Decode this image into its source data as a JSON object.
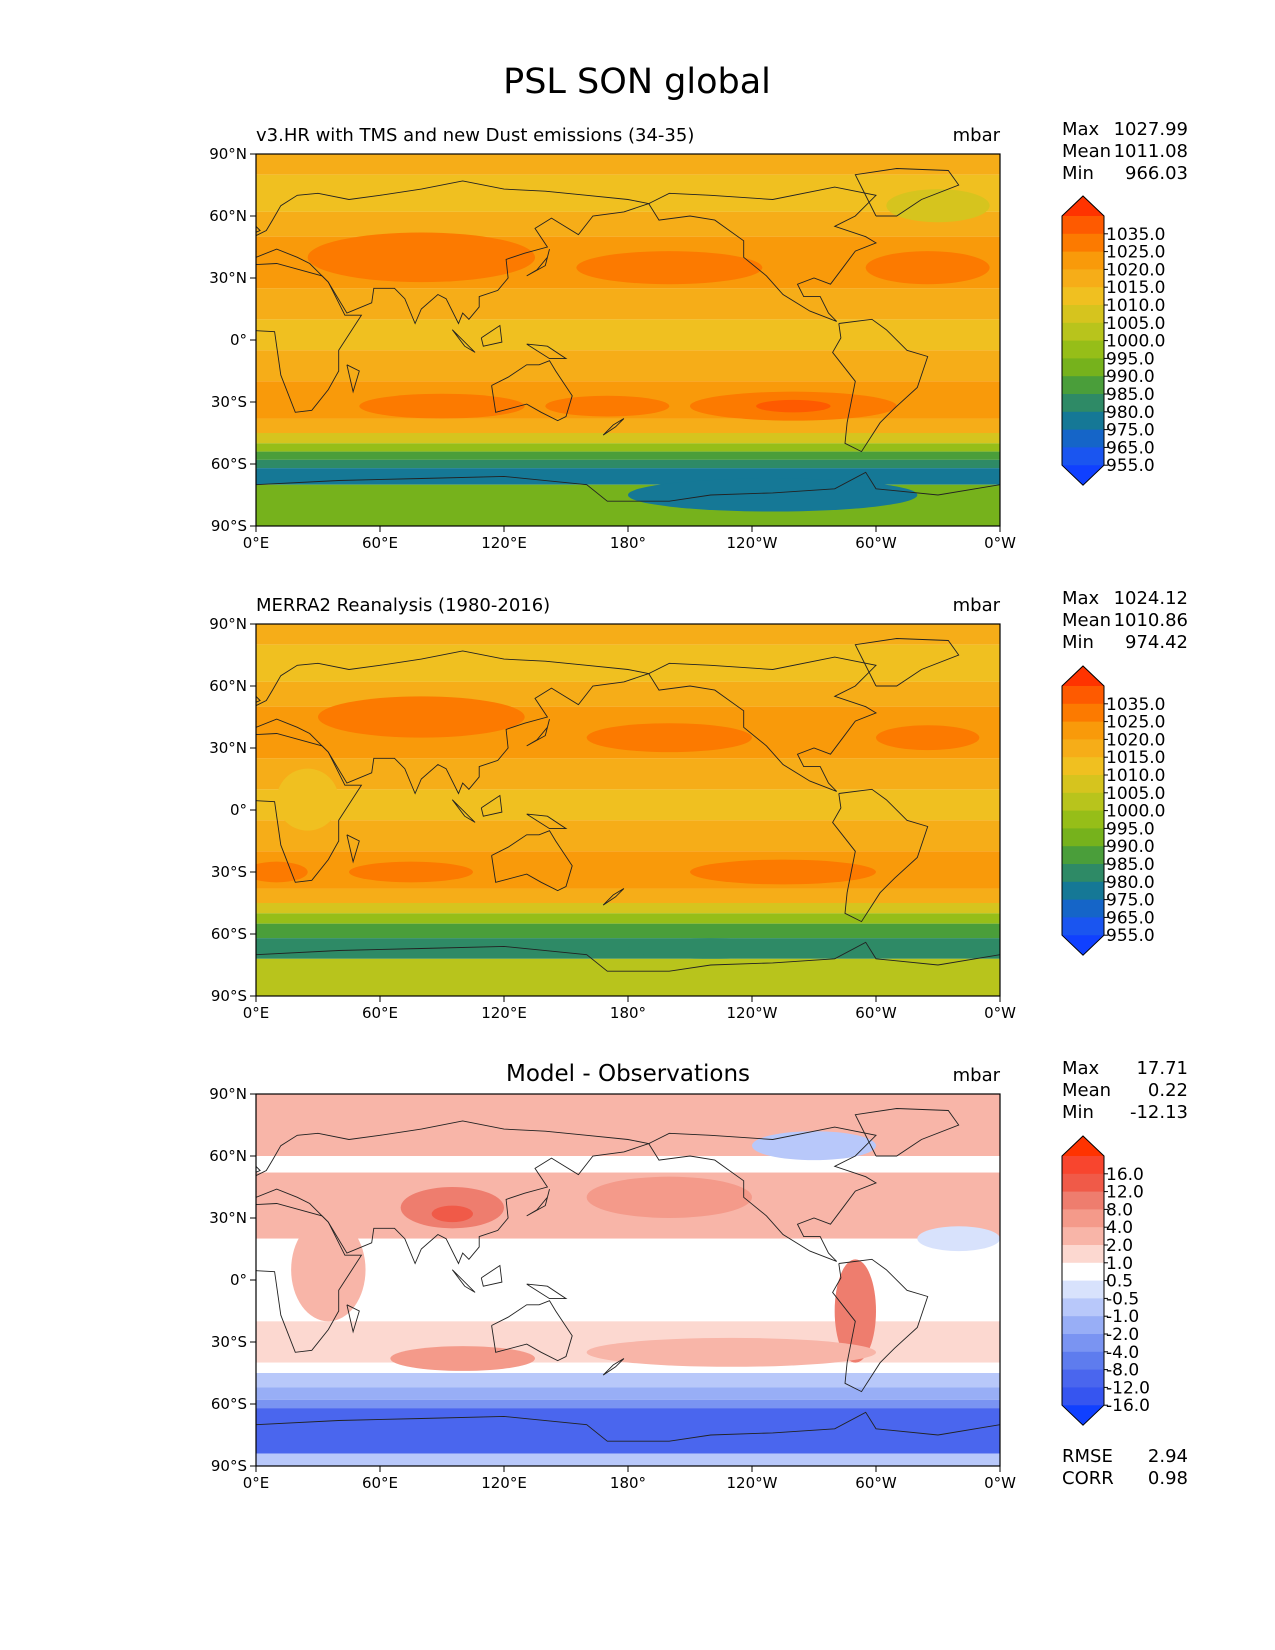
{
  "figure": {
    "title": "PSL SON global"
  },
  "axes": {
    "lat_ticks": [
      {
        "value": 90,
        "label": "90°N"
      },
      {
        "value": 60,
        "label": "60°N"
      },
      {
        "value": 30,
        "label": "30°N"
      },
      {
        "value": 0,
        "label": "0°"
      },
      {
        "value": -30,
        "label": "30°S"
      },
      {
        "value": -60,
        "label": "60°S"
      },
      {
        "value": -90,
        "label": "90°S"
      }
    ],
    "lon_ticks": [
      {
        "value": 0,
        "label": "0°E"
      },
      {
        "value": 60,
        "label": "60°E"
      },
      {
        "value": 120,
        "label": "120°E"
      },
      {
        "value": 180,
        "label": "180°"
      },
      {
        "value": 240,
        "label": "120°W"
      },
      {
        "value": 300,
        "label": "60°W"
      },
      {
        "value": 360,
        "label": "0°W"
      }
    ]
  },
  "panels": [
    {
      "id": "model",
      "title": "v3.HR with TMS and new Dust emissions (34-35)",
      "units": "mbar",
      "stats": [
        {
          "label": "Max",
          "value": "1027.99"
        },
        {
          "label": "Mean",
          "value": "1011.08"
        },
        {
          "label": "Min",
          "value": "966.03"
        }
      ],
      "colorbar": {
        "labels": [
          "1035.0",
          "1025.0",
          "1020.0",
          "1015.0",
          "1010.0",
          "1005.0",
          "1000.0",
          "995.0",
          "990.0",
          "985.0",
          "980.0",
          "975.0",
          "965.0",
          "955.0"
        ],
        "colors": [
          "#ff3300",
          "#fe5a00",
          "#fc7a00",
          "#f99a0a",
          "#f6ad18",
          "#f0c020",
          "#d6c41e",
          "#b8c41c",
          "#96be18",
          "#76b21c",
          "#4a9e3a",
          "#2e8a66",
          "#157896",
          "#1565c8",
          "#1a55f0",
          "#1040ff"
        ]
      },
      "field": {
        "lat_bands": [
          {
            "lat": [
              90,
              80
            ],
            "color": "#f6ad18"
          },
          {
            "lat": [
              80,
              62
            ],
            "color": "#f0c020"
          },
          {
            "lat": [
              62,
              50
            ],
            "color": "#f6ad18"
          },
          {
            "lat": [
              50,
              25
            ],
            "color": "#f99a0a"
          },
          {
            "lat": [
              25,
              10
            ],
            "color": "#f6ad18"
          },
          {
            "lat": [
              10,
              -5
            ],
            "color": "#f0c020"
          },
          {
            "lat": [
              -5,
              -20
            ],
            "color": "#f6ad18"
          },
          {
            "lat": [
              -20,
              -38
            ],
            "color": "#f99a0a"
          },
          {
            "lat": [
              -38,
              -45
            ],
            "color": "#f6ad18"
          },
          {
            "lat": [
              -45,
              -50
            ],
            "color": "#d6c41e"
          },
          {
            "lat": [
              -50,
              -54
            ],
            "color": "#96be18"
          },
          {
            "lat": [
              -54,
              -58
            ],
            "color": "#4a9e3a"
          },
          {
            "lat": [
              -58,
              -62
            ],
            "color": "#2e8a66"
          },
          {
            "lat": [
              -62,
              -70
            ],
            "color": "#157896"
          },
          {
            "lat": [
              -70,
              -90
            ],
            "color": "#76b21c"
          }
        ],
        "blobs": [
          {
            "lon": 80,
            "lat": 40,
            "rlon": 55,
            "rlat": 12,
            "color": "#fc7a00"
          },
          {
            "lon": 200,
            "lat": 35,
            "rlon": 45,
            "rlat": 8,
            "color": "#fc7a00"
          },
          {
            "lon": 325,
            "lat": 35,
            "rlon": 30,
            "rlat": 8,
            "color": "#fc7a00"
          },
          {
            "lon": 260,
            "lat": -32,
            "rlon": 50,
            "rlat": 7,
            "color": "#fc7a00"
          },
          {
            "lon": 260,
            "lat": -32,
            "rlon": 18,
            "rlat": 3,
            "color": "#fe5a00"
          },
          {
            "lon": 90,
            "lat": -32,
            "rlon": 40,
            "rlat": 6,
            "color": "#fc7a00"
          },
          {
            "lon": 170,
            "lat": -32,
            "rlon": 30,
            "rlat": 5,
            "color": "#fc7a00"
          },
          {
            "lon": 250,
            "lat": -75,
            "rlon": 70,
            "rlat": 8,
            "color": "#157896"
          },
          {
            "lon": 330,
            "lat": 65,
            "rlon": 25,
            "rlat": 8,
            "color": "#d6c41e"
          }
        ]
      }
    },
    {
      "id": "obs",
      "title": "MERRA2 Reanalysis (1980-2016)",
      "units": "mbar",
      "stats": [
        {
          "label": "Max",
          "value": "1024.12"
        },
        {
          "label": "Mean",
          "value": "1010.86"
        },
        {
          "label": "Min",
          "value": "974.42"
        }
      ],
      "colorbar": {
        "labels": [
          "1035.0",
          "1025.0",
          "1020.0",
          "1015.0",
          "1010.0",
          "1005.0",
          "1000.0",
          "995.0",
          "990.0",
          "985.0",
          "980.0",
          "975.0",
          "965.0",
          "955.0"
        ],
        "colors": [
          "#ff3300",
          "#fe5a00",
          "#fc7a00",
          "#f99a0a",
          "#f6ad18",
          "#f0c020",
          "#d6c41e",
          "#b8c41c",
          "#96be18",
          "#76b21c",
          "#4a9e3a",
          "#2e8a66",
          "#157896",
          "#1565c8",
          "#1a55f0",
          "#1040ff"
        ]
      },
      "field": {
        "lat_bands": [
          {
            "lat": [
              90,
              80
            ],
            "color": "#f6ad18"
          },
          {
            "lat": [
              80,
              62
            ],
            "color": "#f0c020"
          },
          {
            "lat": [
              62,
              50
            ],
            "color": "#f6ad18"
          },
          {
            "lat": [
              50,
              25
            ],
            "color": "#f99a0a"
          },
          {
            "lat": [
              25,
              10
            ],
            "color": "#f6ad18"
          },
          {
            "lat": [
              10,
              -5
            ],
            "color": "#f0c020"
          },
          {
            "lat": [
              -5,
              -20
            ],
            "color": "#f6ad18"
          },
          {
            "lat": [
              -20,
              -38
            ],
            "color": "#f99a0a"
          },
          {
            "lat": [
              -38,
              -45
            ],
            "color": "#f6ad18"
          },
          {
            "lat": [
              -45,
              -50
            ],
            "color": "#d6c41e"
          },
          {
            "lat": [
              -50,
              -55
            ],
            "color": "#96be18"
          },
          {
            "lat": [
              -55,
              -62
            ],
            "color": "#4a9e3a"
          },
          {
            "lat": [
              -62,
              -72
            ],
            "color": "#2e8a66"
          },
          {
            "lat": [
              -72,
              -90
            ],
            "color": "#b8c41c"
          }
        ],
        "blobs": [
          {
            "lon": 80,
            "lat": 45,
            "rlon": 50,
            "rlat": 10,
            "color": "#fc7a00"
          },
          {
            "lon": 200,
            "lat": 35,
            "rlon": 40,
            "rlat": 7,
            "color": "#fc7a00"
          },
          {
            "lon": 325,
            "lat": 35,
            "rlon": 25,
            "rlat": 6,
            "color": "#fc7a00"
          },
          {
            "lon": 255,
            "lat": -30,
            "rlon": 45,
            "rlat": 6,
            "color": "#fc7a00"
          },
          {
            "lon": 75,
            "lat": -30,
            "rlon": 30,
            "rlat": 5,
            "color": "#fc7a00"
          },
          {
            "lon": 10,
            "lat": -30,
            "rlon": 15,
            "rlat": 5,
            "color": "#fc7a00"
          },
          {
            "lon": 25,
            "lat": 5,
            "rlon": 15,
            "rlat": 15,
            "color": "#f0c020"
          },
          {
            "lon": 220,
            "lat": -67,
            "rlon": 40,
            "rlat": 5,
            "color": "#2e8a66"
          }
        ]
      }
    },
    {
      "id": "diff",
      "title": "Model - Observations",
      "units": "mbar",
      "stats": [
        {
          "label": "Max",
          "value": "17.71"
        },
        {
          "label": "Mean",
          "value": "0.22"
        },
        {
          "label": "Min",
          "value": "-12.13"
        }
      ],
      "metrics": [
        {
          "label": "RMSE",
          "value": "2.94"
        },
        {
          "label": "CORR",
          "value": "0.98"
        }
      ],
      "colorbar": {
        "labels": [
          "16.0",
          "12.0",
          "8.0",
          "4.0",
          "2.0",
          "1.0",
          "0.5",
          "-0.5",
          "-1.0",
          "-2.0",
          "-4.0",
          "-8.0",
          "-12.0",
          "-16.0"
        ],
        "colors": [
          "#ff3300",
          "#f8452e",
          "#f05a48",
          "#ee7d6e",
          "#f49a8a",
          "#f8b5a8",
          "#fcd8d0",
          "#ffffff",
          "#d8e2fc",
          "#b8c8fa",
          "#98aef6",
          "#7a94f2",
          "#5e7cee",
          "#4a66ee",
          "#3655f0",
          "#1040ff"
        ]
      },
      "field": {
        "lat_bands": [
          {
            "lat": [
              90,
              60
            ],
            "color": "#f8b5a8"
          },
          {
            "lat": [
              60,
              52
            ],
            "color": "#ffffff"
          },
          {
            "lat": [
              52,
              20
            ],
            "color": "#f8b5a8"
          },
          {
            "lat": [
              20,
              -20
            ],
            "color": "#ffffff"
          },
          {
            "lat": [
              -20,
              -40
            ],
            "color": "#fcd8d0"
          },
          {
            "lat": [
              -40,
              -45
            ],
            "color": "#ffffff"
          },
          {
            "lat": [
              -45,
              -52
            ],
            "color": "#b8c8fa"
          },
          {
            "lat": [
              -52,
              -58
            ],
            "color": "#98aef6"
          },
          {
            "lat": [
              -58,
              -62
            ],
            "color": "#7a94f2"
          },
          {
            "lat": [
              -62,
              -84
            ],
            "color": "#4a66ee"
          },
          {
            "lat": [
              -84,
              -90
            ],
            "color": "#b8c8fa"
          }
        ],
        "blobs": [
          {
            "lon": 95,
            "lat": 35,
            "rlon": 25,
            "rlat": 10,
            "color": "#ee7d6e"
          },
          {
            "lon": 95,
            "lat": 32,
            "rlon": 10,
            "rlat": 4,
            "color": "#f05a48"
          },
          {
            "lon": 200,
            "lat": 40,
            "rlon": 40,
            "rlat": 10,
            "color": "#f49a8a"
          },
          {
            "lon": 290,
            "lat": -15,
            "rlon": 10,
            "rlat": 25,
            "color": "#ee7d6e"
          },
          {
            "lon": 230,
            "lat": -35,
            "rlon": 70,
            "rlat": 7,
            "color": "#f8b5a8"
          },
          {
            "lon": 100,
            "lat": -38,
            "rlon": 35,
            "rlat": 6,
            "color": "#f49a8a"
          },
          {
            "lon": 270,
            "lat": 65,
            "rlon": 30,
            "rlat": 7,
            "color": "#b8c8fa"
          },
          {
            "lon": 340,
            "lat": 20,
            "rlon": 20,
            "rlat": 6,
            "color": "#d8e2fc"
          },
          {
            "lon": 35,
            "lat": 5,
            "rlon": 18,
            "rlat": 25,
            "color": "#f8b5a8"
          }
        ]
      }
    }
  ]
}
